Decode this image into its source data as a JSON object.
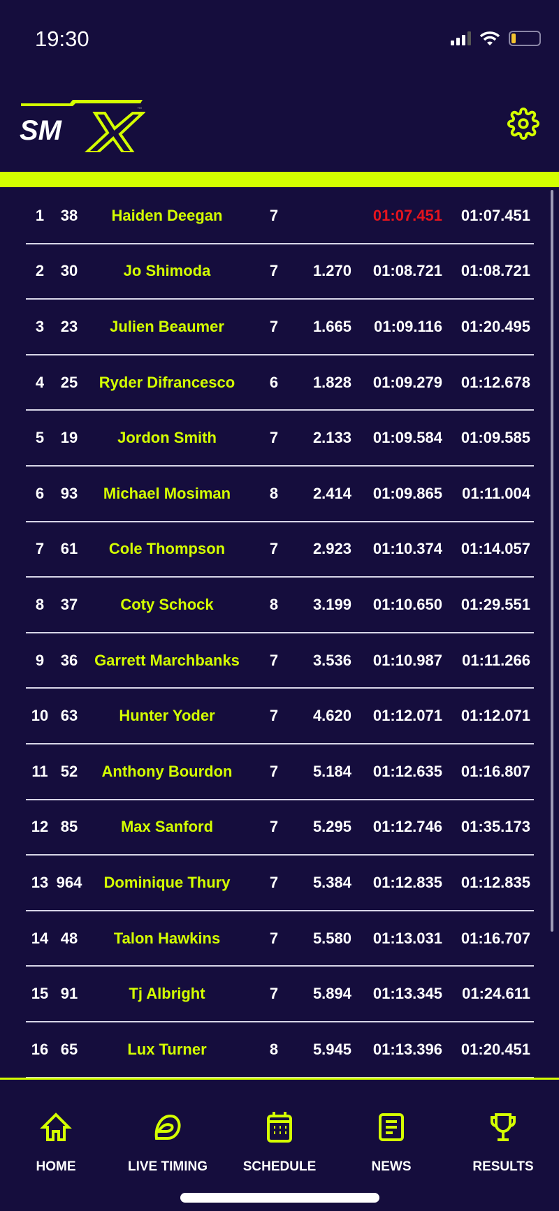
{
  "status_bar": {
    "time": "19:30",
    "battery_color": "#f4c430"
  },
  "header": {
    "logo_text": "SMX",
    "logo_tm": "™",
    "settings_icon": "gear-icon"
  },
  "colors": {
    "accent": "#d4ff00",
    "background": "#150d3d",
    "best_lap_highlight": "#e5141e"
  },
  "results": [
    {
      "pos": "1",
      "num": "38",
      "name": "Haiden Deegan",
      "laps": "7",
      "gap": "",
      "best": "01:07.451",
      "last": "01:07.451",
      "best_highlight": true
    },
    {
      "pos": "2",
      "num": "30",
      "name": "Jo Shimoda",
      "laps": "7",
      "gap": "1.270",
      "best": "01:08.721",
      "last": "01:08.721"
    },
    {
      "pos": "3",
      "num": "23",
      "name": "Julien Beaumer",
      "laps": "7",
      "gap": "1.665",
      "best": "01:09.116",
      "last": "01:20.495"
    },
    {
      "pos": "4",
      "num": "25",
      "name": "Ryder Difrancesco",
      "laps": "6",
      "gap": "1.828",
      "best": "01:09.279",
      "last": "01:12.678"
    },
    {
      "pos": "5",
      "num": "19",
      "name": "Jordon Smith",
      "laps": "7",
      "gap": "2.133",
      "best": "01:09.584",
      "last": "01:09.585"
    },
    {
      "pos": "6",
      "num": "93",
      "name": "Michael Mosiman",
      "laps": "8",
      "gap": "2.414",
      "best": "01:09.865",
      "last": "01:11.004"
    },
    {
      "pos": "7",
      "num": "61",
      "name": "Cole Thompson",
      "laps": "7",
      "gap": "2.923",
      "best": "01:10.374",
      "last": "01:14.057"
    },
    {
      "pos": "8",
      "num": "37",
      "name": "Coty Schock",
      "laps": "8",
      "gap": "3.199",
      "best": "01:10.650",
      "last": "01:29.551"
    },
    {
      "pos": "9",
      "num": "36",
      "name": "Garrett Marchbanks",
      "laps": "7",
      "gap": "3.536",
      "best": "01:10.987",
      "last": "01:11.266"
    },
    {
      "pos": "10",
      "num": "63",
      "name": "Hunter Yoder",
      "laps": "7",
      "gap": "4.620",
      "best": "01:12.071",
      "last": "01:12.071"
    },
    {
      "pos": "11",
      "num": "52",
      "name": "Anthony Bourdon",
      "laps": "7",
      "gap": "5.184",
      "best": "01:12.635",
      "last": "01:16.807"
    },
    {
      "pos": "12",
      "num": "85",
      "name": "Max Sanford",
      "laps": "7",
      "gap": "5.295",
      "best": "01:12.746",
      "last": "01:35.173"
    },
    {
      "pos": "13",
      "num": "964",
      "name": "Dominique Thury",
      "laps": "7",
      "gap": "5.384",
      "best": "01:12.835",
      "last": "01:12.835"
    },
    {
      "pos": "14",
      "num": "48",
      "name": "Talon Hawkins",
      "laps": "7",
      "gap": "5.580",
      "best": "01:13.031",
      "last": "01:16.707"
    },
    {
      "pos": "15",
      "num": "91",
      "name": "Tj Albright",
      "laps": "7",
      "gap": "5.894",
      "best": "01:13.345",
      "last": "01:24.611"
    },
    {
      "pos": "16",
      "num": "65",
      "name": "Lux Turner",
      "laps": "8",
      "gap": "5.945",
      "best": "01:13.396",
      "last": "01:20.451"
    }
  ],
  "nav": [
    {
      "label": "HOME",
      "icon": "home-icon"
    },
    {
      "label": "LIVE TIMING",
      "icon": "helmet-icon"
    },
    {
      "label": "SCHEDULE",
      "icon": "calendar-icon"
    },
    {
      "label": "NEWS",
      "icon": "news-icon"
    },
    {
      "label": "RESULTS",
      "icon": "trophy-icon"
    }
  ]
}
